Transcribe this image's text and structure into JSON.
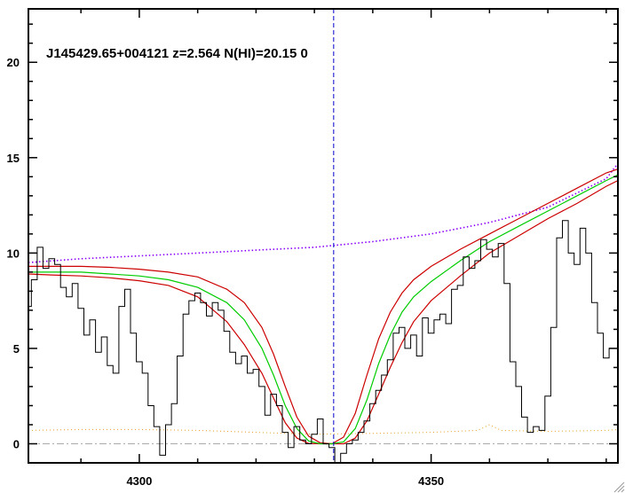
{
  "chart_data": {
    "type": "line",
    "title": "J145429.65+004121 z=2.564 N(HI)=20.15 0",
    "xlabel": "",
    "ylabel": "",
    "xlim": [
      4281,
      4382
    ],
    "ylim": [
      -1,
      22.8
    ],
    "x_ticks": [
      4300,
      4350
    ],
    "y_ticks": [
      0,
      5,
      10,
      15,
      20
    ],
    "center_line_x": 4333.3,
    "colors": {
      "flux": "#000000",
      "model": "#00cc00",
      "model_bounds": "#cc0000",
      "continuum": "#8a00ff",
      "error": "#e8a020",
      "zero": "#aaaaaa",
      "center": "#0000cc"
    },
    "flux": {
      "x": [
        4281,
        4282,
        4283,
        4284,
        4285,
        4286,
        4287,
        4288,
        4289,
        4290,
        4291,
        4292,
        4293,
        4294,
        4295,
        4296,
        4297,
        4298,
        4299,
        4300,
        4301,
        4302,
        4303,
        4304,
        4305,
        4306,
        4307,
        4308,
        4309,
        4310,
        4311,
        4312,
        4313,
        4314,
        4315,
        4316,
        4317,
        4318,
        4319,
        4320,
        4321,
        4322,
        4323,
        4324,
        4325,
        4326,
        4327,
        4328,
        4329,
        4330,
        4331,
        4332,
        4333,
        4334,
        4335,
        4336,
        4337,
        4338,
        4339,
        4340,
        4341,
        4342,
        4343,
        4344,
        4345,
        4346,
        4347,
        4348,
        4349,
        4350,
        4351,
        4352,
        4353,
        4354,
        4355,
        4356,
        4357,
        4358,
        4359,
        4360,
        4361,
        4362,
        4363,
        4364,
        4365,
        4366,
        4367,
        4368,
        4369,
        4370,
        4371,
        4372,
        4373,
        4374,
        4375,
        4376,
        4377,
        4378,
        4379,
        4380,
        4381
      ],
      "y": [
        7.2,
        8.6,
        10.3,
        9.2,
        9.7,
        9.4,
        8.2,
        7.7,
        8.4,
        7.1,
        5.7,
        6.5,
        4.8,
        5.6,
        4.1,
        3.7,
        7.2,
        8.1,
        5.8,
        4.3,
        3.7,
        2.0,
        0.9,
        -0.6,
        1.0,
        2.1,
        4.6,
        6.8,
        7.5,
        7.9,
        7.4,
        6.7,
        7.4,
        7.0,
        5.9,
        4.8,
        4.2,
        4.6,
        3.7,
        3.9,
        3.0,
        1.5,
        2.6,
        2.0,
        0.6,
        -0.2,
        0.9,
        0.2,
        0.0,
        0.5,
        1.3,
        0.0,
        -0.2,
        -1.0,
        -0.5,
        0.0,
        0.2,
        0.6,
        1.2,
        2.1,
        2.8,
        3.6,
        4.4,
        5.8,
        6.1,
        5.0,
        5.7,
        4.6,
        6.6,
        5.8,
        6.5,
        6.8,
        6.3,
        8.1,
        8.3,
        9.8,
        9.2,
        9.6,
        10.7,
        10.2,
        9.8,
        10.5,
        8.4,
        4.3,
        3.0,
        1.4,
        0.6,
        0.9,
        0.7,
        2.5,
        6.1,
        10.8,
        11.7,
        10.0,
        9.4,
        11.3,
        10.0,
        7.4,
        5.8,
        4.5,
        5.0
      ]
    },
    "model": {
      "x": [
        4281,
        4285,
        4290,
        4295,
        4300,
        4305,
        4310,
        4315,
        4318,
        4321,
        4323,
        4325,
        4327,
        4329,
        4331,
        4333,
        4335,
        4337,
        4339,
        4341,
        4343,
        4345,
        4347,
        4350,
        4355,
        4360,
        4365,
        4370,
        4375,
        4380,
        4382
      ],
      "y": [
        9.0,
        9.0,
        9.0,
        8.9,
        8.8,
        8.6,
        8.2,
        7.4,
        6.5,
        5.0,
        3.6,
        2.0,
        0.8,
        0.15,
        0.0,
        0.0,
        0.1,
        0.8,
        2.3,
        4.2,
        5.7,
        6.9,
        7.7,
        8.5,
        9.6,
        10.6,
        11.4,
        12.2,
        13.0,
        13.8,
        14.1
      ]
    },
    "model_upper": {
      "x": [
        4281,
        4285,
        4290,
        4295,
        4300,
        4305,
        4310,
        4315,
        4318,
        4321,
        4323,
        4325,
        4327,
        4329,
        4331,
        4333,
        4335,
        4337,
        4339,
        4341,
        4343,
        4345,
        4347,
        4350,
        4355,
        4360,
        4365,
        4370,
        4375,
        4380,
        4382
      ],
      "y": [
        9.3,
        9.3,
        9.3,
        9.25,
        9.15,
        9.0,
        8.75,
        8.1,
        7.4,
        6.1,
        4.7,
        3.0,
        1.4,
        0.4,
        0.05,
        0.0,
        0.35,
        1.6,
        3.6,
        5.5,
        6.9,
        7.9,
        8.6,
        9.3,
        10.2,
        11.0,
        11.8,
        12.6,
        13.4,
        14.2,
        14.4
      ]
    },
    "model_lower": {
      "x": [
        4281,
        4285,
        4290,
        4295,
        4300,
        4305,
        4310,
        4315,
        4318,
        4321,
        4323,
        4325,
        4327,
        4329,
        4331,
        4333,
        4335,
        4337,
        4339,
        4341,
        4343,
        4345,
        4347,
        4350,
        4355,
        4360,
        4365,
        4370,
        4375,
        4380,
        4382
      ],
      "y": [
        8.9,
        8.85,
        8.8,
        8.7,
        8.55,
        8.3,
        7.7,
        6.4,
        5.2,
        3.7,
        2.4,
        1.1,
        0.3,
        0.02,
        0.0,
        0.0,
        0.0,
        0.3,
        1.2,
        2.6,
        4.0,
        5.3,
        6.4,
        7.5,
        8.8,
        10.0,
        10.9,
        11.8,
        12.6,
        13.5,
        13.8
      ]
    },
    "continuum": {
      "x": [
        4281,
        4290,
        4300,
        4310,
        4320,
        4330,
        4340,
        4350,
        4360,
        4370,
        4380,
        4382
      ],
      "y": [
        9.5,
        9.7,
        9.85,
        10.0,
        10.15,
        10.3,
        10.6,
        11.0,
        11.6,
        12.4,
        13.9,
        14.7
      ]
    },
    "error": {
      "x": [
        4281,
        4290,
        4300,
        4310,
        4320,
        4330,
        4340,
        4350,
        4358,
        4360,
        4362,
        4370,
        4380,
        4382
      ],
      "y": [
        0.7,
        0.75,
        0.75,
        0.7,
        0.6,
        0.5,
        0.55,
        0.6,
        0.7,
        1.0,
        0.7,
        0.65,
        0.7,
        0.75
      ]
    }
  }
}
